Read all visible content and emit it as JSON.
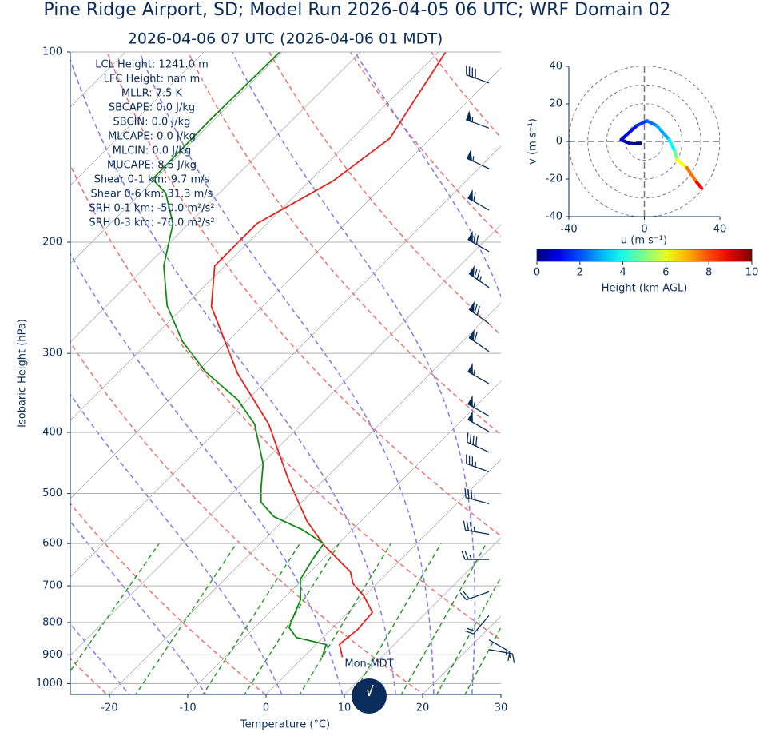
{
  "chart_data": [
    {
      "type": "skewt",
      "title": "Pine Ridge Airport, SD; Model Run 2026-04-05 06 UTC; WRF Domain 02",
      "subtitle": "2026-04-06 07 UTC  (2026-04-06 01 MDT)",
      "xlabel": "Temperature (°C)",
      "ylabel": "Isobaric Height (hPa)",
      "xlim": [
        -25,
        30
      ],
      "ylim": [
        1040,
        100
      ],
      "xticks": [
        -20,
        -10,
        0,
        10,
        20,
        30
      ],
      "yticks": [
        100,
        200,
        300,
        400,
        500,
        600,
        700,
        800,
        900,
        1000
      ],
      "log_y": true,
      "grid": true,
      "series": [
        {
          "color": "#e8201a",
          "pressure": [
            908,
            867,
            852,
            820,
            771,
            726,
            695,
            665,
            606,
            553,
            476,
            388,
            323,
            253,
            218,
            187,
            160,
            137,
            100
          ],
          "values": [
            5.0,
            3.0,
            3.1,
            3.4,
            3.1,
            -0.1,
            -3.0,
            -4.9,
            -11.4,
            -16.9,
            -24.5,
            -34.2,
            -44.6,
            -56.5,
            -61.3,
            -61.3,
            -57.0,
            -55.2,
            -59.1
          ]
        },
        {
          "color": "#148a14",
          "pressure": [
            908,
            867,
            845,
            815,
            781,
            736,
            684,
            636,
            600,
            570,
            544,
            516,
            490,
            449,
            388,
            355,
            321,
            287,
            252,
            218,
            187,
            167,
            159,
            128,
            100
          ],
          "values": [
            2.4,
            1.3,
            -3.4,
            -5.6,
            -6.5,
            -7.7,
            -10.3,
            -11.3,
            -11.9,
            -16.5,
            -21.7,
            -25.2,
            -27.0,
            -29.8,
            -36.0,
            -41.3,
            -48.9,
            -55.8,
            -62.3,
            -67.8,
            -72.0,
            -76.9,
            -80.3,
            -80.5,
            -80.3
          ]
        }
      ],
      "wind": {
        "color": "#0b2d5b",
        "pressure": [
          112,
          132,
          153,
          178,
          207,
          236,
          269,
          298,
          335,
          377,
          399,
          430,
          462,
          519,
          580,
          636,
          715,
          780,
          852,
          883
        ],
        "speed": [
          40,
          55,
          55,
          60,
          70,
          75,
          70,
          60,
          55,
          55,
          50,
          40,
          35,
          35,
          35,
          25,
          20,
          20,
          15,
          15
        ],
        "direction": [
          290,
          290,
          295,
          300,
          300,
          305,
          305,
          305,
          300,
          300,
          300,
          295,
          290,
          285,
          280,
          270,
          250,
          220,
          120,
          100
        ]
      },
      "annotations": [
        "LCL Height: 1241.0 m",
        "LFC Height: nan m",
        "MLLR: 7.5 K",
        "SBCAPE: 0.0 J/kg",
        "SBCIN: 0.0 J/kg",
        "MLCAPE: 0.0 J/kg",
        "MLCIN: 0.0 J/kg",
        "MUCAPE: 8.5 J/kg",
        "Shear 0-1 km: 9.7 m/s",
        "Shear 0-6 km: 31.3 m/s",
        "SRH 0-1 km: -50.0 m²/s²",
        "SRH 0-3 km: -76.0 m²/s²"
      ],
      "clock_label": "Mon-MDT"
    },
    {
      "type": "hodograph",
      "xlabel": "u (m s⁻¹)",
      "ylabel": "v (m s⁻¹)",
      "xlim": [
        -40,
        40
      ],
      "ylim": [
        -40,
        40
      ],
      "xticks": [
        -40,
        0,
        40
      ],
      "yticks": [
        -40,
        -20,
        0,
        20,
        40
      ],
      "u": [
        -2,
        -7.2,
        -12.3,
        -10,
        -3.8,
        1.3,
        6.4,
        13.2,
        16.2,
        17.4,
        22.5,
        27.7,
        30.2
      ],
      "v": [
        -1,
        -1.3,
        0.9,
        3,
        8.5,
        11,
        8.5,
        0.9,
        -5.5,
        -9.8,
        -14,
        -21.7,
        -24.7
      ],
      "height": [
        0,
        0.3,
        0.6,
        1.0,
        1.5,
        2,
        2.6,
        3.3,
        4.2,
        5.5,
        7,
        8.3,
        9.5
      ],
      "colormap": "jet",
      "colorbar": {
        "label": "Height (km AGL)",
        "lim": [
          0,
          10
        ],
        "ticks": [
          0,
          2,
          4,
          6,
          8,
          10
        ]
      }
    }
  ]
}
